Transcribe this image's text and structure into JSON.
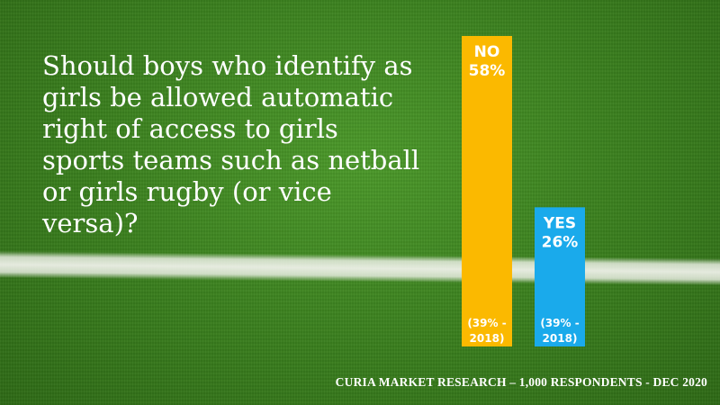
{
  "question": "Should boys who identify as girls be allowed automatic right of access to girls sports teams such as netball or girls rugby (or vice versa)?",
  "source": "CURIA MARKET RESEARCH – 1,000 RESPONDENTS - DEC 2020",
  "chart_data": {
    "type": "bar",
    "categories": [
      "NO",
      "YES"
    ],
    "values": [
      58,
      26
    ],
    "value_labels": [
      "58%",
      "26%"
    ],
    "previous_labels": [
      [
        "(39% -",
        "2018)"
      ],
      [
        "(39% -",
        "2018)"
      ]
    ],
    "unit": "%",
    "ylim": [
      0,
      58
    ],
    "colors": [
      "#fbb900",
      "#1aaaeb"
    ],
    "grid": false,
    "legend": false
  }
}
